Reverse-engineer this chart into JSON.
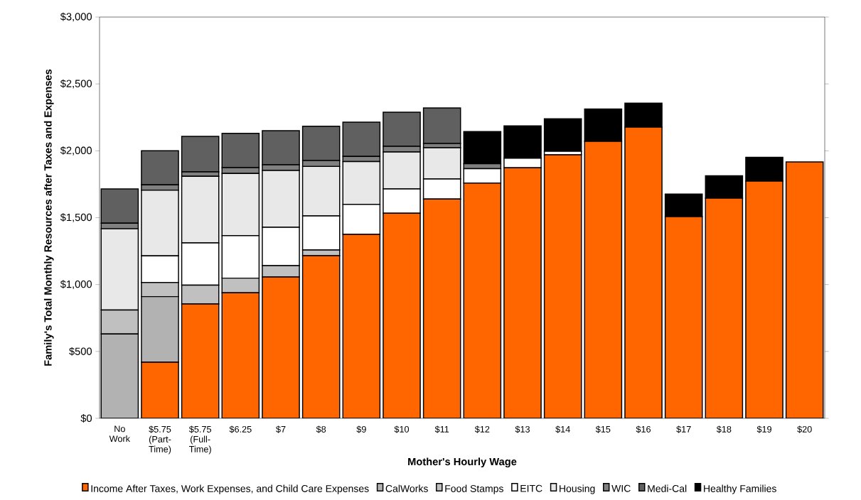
{
  "chart_data": {
    "type": "bar",
    "stacked": true,
    "xlabel": "Mother's Hourly Wage",
    "ylabel": "Family's Total Monthly Resources after Taxes and Expenses",
    "categories": [
      "No Work",
      "$5.75 (Part-Time)",
      "$5.75 (Full-Time)",
      "$6.25",
      "$7",
      "$8",
      "$9",
      "$10",
      "$11",
      "$12",
      "$13",
      "$14",
      "$15",
      "$16",
      "$17",
      "$18",
      "$19",
      "$20"
    ],
    "series": [
      {
        "name": "Income After Taxes, Work Expenses, and Child Care Expenses",
        "color": "#ff6600",
        "values": [
          0,
          420,
          855,
          938,
          1057,
          1216,
          1375,
          1533,
          1639,
          1759,
          1873,
          1970,
          2071,
          2177,
          1508,
          1646,
          1773,
          1917
        ]
      },
      {
        "name": "CalWorks",
        "color": "#b2b2b2",
        "values": [
          630,
          490,
          0,
          0,
          0,
          0,
          0,
          0,
          0,
          0,
          0,
          0,
          0,
          0,
          0,
          0,
          0,
          0
        ]
      },
      {
        "name": "Food Stamps",
        "color": "#c0c0c0",
        "values": [
          180,
          105,
          140,
          110,
          85,
          42,
          0,
          0,
          0,
          0,
          0,
          0,
          0,
          0,
          0,
          0,
          0,
          0
        ]
      },
      {
        "name": "EITC",
        "color": "#ffffff",
        "values": [
          0,
          200,
          317,
          318,
          286,
          255,
          225,
          182,
          150,
          107,
          72,
          27,
          0,
          0,
          0,
          0,
          0,
          0
        ]
      },
      {
        "name": "Housing",
        "color": "#e8e8e8",
        "values": [
          607,
          490,
          497,
          464,
          425,
          370,
          319,
          276,
          234,
          0,
          0,
          0,
          0,
          0,
          0,
          0,
          0,
          0
        ]
      },
      {
        "name": "WIC",
        "color": "#808080",
        "values": [
          42,
          40,
          34,
          44,
          43,
          45,
          39,
          43,
          32,
          37,
          0,
          0,
          0,
          0,
          0,
          0,
          0,
          0
        ]
      },
      {
        "name": "Medi-Cal",
        "color": "#606060",
        "values": [
          256,
          255,
          265,
          257,
          255,
          256,
          256,
          255,
          265,
          0,
          0,
          0,
          0,
          0,
          0,
          0,
          0,
          0
        ]
      },
      {
        "name": "Healthy Families",
        "color": "#000000",
        "values": [
          0,
          0,
          0,
          0,
          0,
          0,
          0,
          0,
          0,
          241,
          241,
          243,
          242,
          179,
          168,
          168,
          179,
          0
        ]
      }
    ],
    "ylim": [
      0,
      3000
    ],
    "yticks": [
      {
        "value": 0,
        "label": "$0"
      },
      {
        "value": 500,
        "label": "$500"
      },
      {
        "value": 1000,
        "label": "$1,000"
      },
      {
        "value": 1500,
        "label": "$1,500"
      },
      {
        "value": 2000,
        "label": "$2,000"
      },
      {
        "value": 2500,
        "label": "$2,500"
      },
      {
        "value": 3000,
        "label": "$3,000"
      }
    ],
    "grid": false,
    "legend": "bottom"
  }
}
